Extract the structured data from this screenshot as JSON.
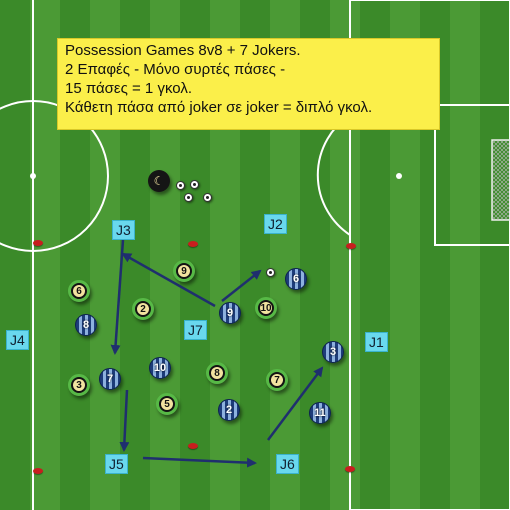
{
  "colors": {
    "grass_dark": "#3b8a29",
    "grass_light": "#4b9a35",
    "note_bg": "#fbef4a",
    "joker_bg": "#69d8ee",
    "arrow": "#1f2f6e",
    "cone": "#c81e1e"
  },
  "instructions": {
    "line1": "Possession Games 8v8 + 7 Jokers.",
    "line2": "2 Επαφές - Μόνο συρτές πάσες -",
    "line3": "15 πάσες = 1 γκολ.",
    "line4": "Κάθετη πάσα από joker σε joker = διπλό γκολ."
  },
  "jokers": {
    "j1": "J1",
    "j2": "J2",
    "j3": "J3",
    "j4": "J4",
    "j5": "J5",
    "j6": "J6",
    "j7": "J7"
  },
  "blue_team": {
    "p6": "6",
    "p8": "8",
    "p9": "9",
    "p7": "7",
    "p10": "10",
    "p3": "3",
    "p2": "2",
    "p11": "11"
  },
  "black_team": {
    "p9": "9",
    "p6": "6",
    "p2": "2",
    "p10": "10",
    "p3": "3",
    "p8": "8",
    "p7": "7",
    "p5": "5"
  },
  "coach_symbol": "☾"
}
